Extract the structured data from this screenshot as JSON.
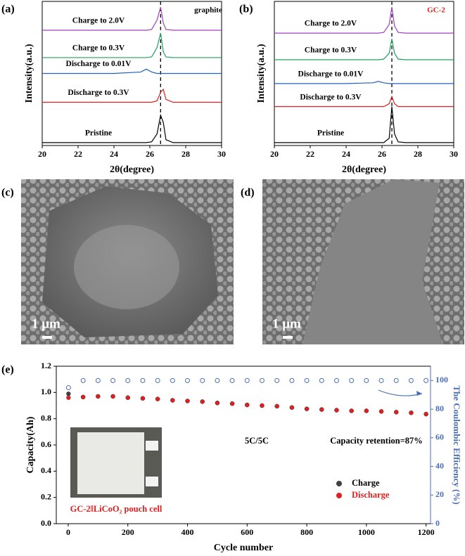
{
  "chart_data": [
    {
      "type": "line",
      "panel_label": "(a)",
      "annotation": "graphite",
      "x_label": "2θ(degree)",
      "y_label": "Intensity(a.u.)",
      "x": [
        20,
        24,
        25.5,
        25.8,
        26.1,
        26.4,
        26.6,
        26.75,
        26.9,
        27.3,
        30
      ],
      "xlim": [
        20,
        30
      ],
      "xticks": [
        20,
        22,
        24,
        26,
        28,
        30
      ],
      "ylim": [
        0,
        10
      ],
      "reference_line": 26.6,
      "series": [
        {
          "name": "Pristine",
          "color": "#000000",
          "values": [
            0.2,
            0.2,
            0.2,
            0.2,
            0.25,
            0.8,
            2.1,
            1.6,
            0.4,
            0.2,
            0.2
          ]
        },
        {
          "name": "Discharge to 0.3V",
          "color": "#e02020",
          "values": [
            3.0,
            3.0,
            3.0,
            3.0,
            3.0,
            3.1,
            3.7,
            3.9,
            3.2,
            3.0,
            3.0
          ]
        },
        {
          "name": "Discharge to 0.01V",
          "color": "#2060c0",
          "values": [
            5.0,
            5.0,
            5.1,
            5.3,
            5.1,
            5.0,
            5.0,
            5.0,
            5.0,
            5.0,
            5.0
          ]
        },
        {
          "name": "Charge to 0.3V",
          "color": "#20a060",
          "values": [
            6.1,
            6.1,
            6.1,
            6.1,
            6.15,
            6.8,
            7.8,
            6.5,
            6.15,
            6.1,
            6.1
          ]
        },
        {
          "name": "Charge to 2.0V",
          "color": "#a040c0",
          "values": [
            8.0,
            8.0,
            8.0,
            8.0,
            8.05,
            8.7,
            9.6,
            8.5,
            8.05,
            8.0,
            8.0
          ]
        }
      ]
    },
    {
      "type": "line",
      "panel_label": "(b)",
      "annotation": "GC-2",
      "x_label": "2θ(degree)",
      "y_label": "Intensity(a.u.)",
      "x": [
        20,
        24,
        25.5,
        25.8,
        26.1,
        26.4,
        26.55,
        26.7,
        26.9,
        27.3,
        30
      ],
      "xlim": [
        20,
        30
      ],
      "xticks": [
        20,
        22,
        24,
        26,
        28,
        30
      ],
      "ylim": [
        0,
        10
      ],
      "reference_line": 26.55,
      "series": [
        {
          "name": "Pristine",
          "color": "#000000",
          "values": [
            0.2,
            0.2,
            0.2,
            0.2,
            0.2,
            0.5,
            2.7,
            0.8,
            0.25,
            0.2,
            0.2
          ]
        },
        {
          "name": "Discharge to 0.3V",
          "color": "#e02020",
          "values": [
            2.7,
            2.7,
            2.7,
            2.7,
            2.7,
            2.9,
            3.4,
            2.9,
            2.7,
            2.7,
            2.7
          ]
        },
        {
          "name": "Discharge to 0.01V",
          "color": "#2060c0",
          "values": [
            4.3,
            4.3,
            4.35,
            4.45,
            4.35,
            4.3,
            4.3,
            4.3,
            4.3,
            4.3,
            4.3
          ]
        },
        {
          "name": "Charge to 0.3V",
          "color": "#20a060",
          "values": [
            5.95,
            5.95,
            5.95,
            5.95,
            6.0,
            6.4,
            7.4,
            6.4,
            6.0,
            5.95,
            5.95
          ]
        },
        {
          "name": "Charge to 2.0V",
          "color": "#a040c0",
          "values": [
            7.8,
            7.8,
            7.8,
            7.8,
            7.85,
            8.4,
            9.6,
            8.3,
            7.85,
            7.8,
            7.8
          ]
        }
      ]
    },
    {
      "type": "scatter",
      "panel_label": "(e)",
      "x_label": "Cycle number",
      "y_label": "Capacity(Ah)",
      "y2_label": "The Coulombic Efficiency (%)",
      "annotations": [
        "5C/5C",
        "Capacity retention=87%",
        "GC-2ǁLiCoO₂ pouch cell"
      ],
      "legend": "lower right",
      "x": [
        1,
        50,
        100,
        150,
        200,
        250,
        300,
        350,
        400,
        450,
        500,
        550,
        600,
        650,
        700,
        750,
        800,
        850,
        900,
        950,
        1000,
        1050,
        1100,
        1150,
        1200
      ],
      "xlim": [
        -40,
        1215
      ],
      "xticks": [
        0,
        200,
        400,
        600,
        800,
        1000,
        1200
      ],
      "ylim": [
        0,
        1.2
      ],
      "yticks": [
        {
          "value": 0,
          "label": "0.0"
        },
        {
          "value": 0.2,
          "label": "0.2"
        },
        {
          "value": 0.4,
          "label": "0.4"
        },
        {
          "value": 0.6,
          "label": "0.6"
        },
        {
          "value": 0.8,
          "label": "0.8"
        },
        {
          "value": 1,
          "label": "1.0"
        },
        {
          "value": 1.2,
          "label": "1.2"
        }
      ],
      "y2lim": [
        0,
        110
      ],
      "y2ticks": [
        0,
        20,
        40,
        60,
        80,
        100
      ],
      "series": [
        {
          "name": "Charge",
          "color": "#404040",
          "values": [
            0.99,
            0.965,
            0.97,
            0.97,
            0.96,
            0.955,
            0.95,
            0.94,
            0.935,
            0.93,
            0.92,
            0.915,
            0.905,
            0.9,
            0.895,
            0.885,
            0.875,
            0.87,
            0.865,
            0.86,
            0.86,
            0.855,
            0.85,
            0.845,
            0.835
          ]
        },
        {
          "name": "Discharge",
          "color": "#e02020",
          "values": [
            0.96,
            0.965,
            0.97,
            0.97,
            0.96,
            0.955,
            0.95,
            0.94,
            0.935,
            0.93,
            0.92,
            0.915,
            0.905,
            0.9,
            0.895,
            0.885,
            0.875,
            0.87,
            0.865,
            0.86,
            0.86,
            0.855,
            0.85,
            0.845,
            0.835
          ]
        },
        {
          "color": "#4a6fb5",
          "axis": "y2",
          "values": [
            95,
            100,
            100,
            100,
            100,
            100,
            100,
            100,
            100,
            100,
            100,
            100,
            100,
            100,
            100,
            100,
            100,
            100,
            100,
            100,
            100,
            100,
            100,
            100,
            100
          ]
        }
      ]
    }
  ],
  "images": [
    {
      "panel_label": "(c)",
      "scale_bar": "1 μm"
    },
    {
      "panel_label": "(d)",
      "scale_bar": "1 μm"
    }
  ]
}
